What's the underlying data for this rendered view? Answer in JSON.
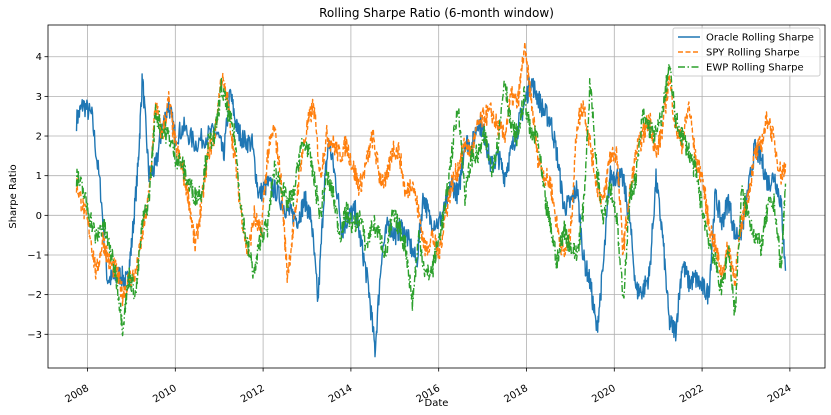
{
  "chart_data": {
    "type": "line",
    "title": "Rolling Sharpe Ratio (6-month window)",
    "xlabel": "Date",
    "ylabel": "Sharpe Ratio",
    "xlim": [
      2007.1,
      2024.8
    ],
    "ylim": [
      -3.85,
      4.8
    ],
    "x_ticks": [
      "2008",
      "2010",
      "2012",
      "2014",
      "2016",
      "2018",
      "2020",
      "2022",
      "2024"
    ],
    "y_ticks": [
      -3,
      -2,
      -1,
      0,
      1,
      2,
      3,
      4
    ],
    "grid": true,
    "legend_position": "top-right",
    "series": [
      {
        "name": "Oracle Rolling Sharpe",
        "color": "#1f77b4",
        "style": "solid",
        "x": [
          2007.75,
          2007.9,
          2008.1,
          2008.3,
          2008.45,
          2008.6,
          2008.75,
          2008.9,
          2009.0,
          2009.15,
          2009.25,
          2009.4,
          2009.55,
          2009.7,
          2009.85,
          2010.0,
          2010.2,
          2010.45,
          2010.7,
          2010.95,
          2011.1,
          2011.25,
          2011.4,
          2011.55,
          2011.75,
          2011.9,
          2012.1,
          2012.3,
          2012.5,
          2012.65,
          2012.8,
          2012.95,
          2013.1,
          2013.25,
          2013.4,
          2013.5,
          2013.65,
          2013.8,
          2013.95,
          2014.1,
          2014.25,
          2014.4,
          2014.55,
          2014.7,
          2014.85,
          2015.0,
          2015.15,
          2015.3,
          2015.5,
          2015.65,
          2015.8,
          2016.0,
          2016.15,
          2016.3,
          2016.45,
          2016.6,
          2016.75,
          2016.9,
          2017.05,
          2017.2,
          2017.35,
          2017.5,
          2017.65,
          2017.8,
          2017.95,
          2018.1,
          2018.25,
          2018.4,
          2018.55,
          2018.7,
          2018.85,
          2019.0,
          2019.15,
          2019.3,
          2019.45,
          2019.6,
          2019.75,
          2019.9,
          2020.05,
          2020.2,
          2020.35,
          2020.5,
          2020.65,
          2020.8,
          2020.95,
          2021.1,
          2021.25,
          2021.4,
          2021.55,
          2021.7,
          2021.85,
          2022.0,
          2022.15,
          2022.3,
          2022.45,
          2022.6,
          2022.75,
          2022.9,
          2023.05,
          2023.2,
          2023.35,
          2023.5,
          2023.65,
          2023.8,
          2023.9
        ],
        "values": [
          2.4,
          2.8,
          2.5,
          0.6,
          -1.6,
          -1.6,
          -1.5,
          -1.7,
          -0.8,
          1.2,
          3.5,
          1.0,
          1.2,
          2.2,
          2.8,
          2.0,
          2.2,
          1.8,
          2.0,
          2.1,
          1.5,
          3.1,
          2.2,
          1.9,
          1.8,
          0.5,
          0.8,
          0.6,
          0.2,
          0.0,
          -0.1,
          0.4,
          -0.1,
          -2.2,
          0.8,
          1.9,
          0.9,
          -0.4,
          0.0,
          0.1,
          -0.8,
          -1.8,
          -3.4,
          -1.0,
          -0.2,
          -0.5,
          -0.3,
          -0.6,
          -1.2,
          0.5,
          -0.1,
          -0.2,
          0.2,
          0.8,
          0.5,
          1.9,
          1.7,
          2.4,
          2.0,
          1.2,
          1.5,
          1.0,
          1.6,
          2.2,
          2.8,
          3.4,
          3.0,
          2.6,
          2.4,
          1.5,
          0.2,
          0.3,
          0.7,
          -1.1,
          -1.7,
          -2.9,
          -1.3,
          1.0,
          1.0,
          0.9,
          -0.1,
          -1.9,
          -1.9,
          -1.5,
          0.9,
          -0.5,
          -2.7,
          -2.9,
          -1.2,
          -1.7,
          -1.6,
          -1.8,
          -2.0,
          0.5,
          -0.2,
          0.4,
          -0.5,
          -0.4,
          0.6,
          1.7,
          1.4,
          0.8,
          1.0,
          0.3,
          -1.4
        ]
      },
      {
        "name": "SPY Rolling Sharpe",
        "color": "#ff7f0e",
        "style": "dashed",
        "x": [
          2007.75,
          2007.9,
          2008.05,
          2008.2,
          2008.35,
          2008.5,
          2008.65,
          2008.8,
          2008.95,
          2009.1,
          2009.25,
          2009.4,
          2009.55,
          2009.7,
          2009.85,
          2010.0,
          2010.15,
          2010.3,
          2010.45,
          2010.6,
          2010.75,
          2010.9,
          2011.05,
          2011.2,
          2011.35,
          2011.5,
          2011.65,
          2011.8,
          2011.95,
          2012.1,
          2012.25,
          2012.4,
          2012.55,
          2012.7,
          2012.85,
          2013.0,
          2013.15,
          2013.3,
          2013.45,
          2013.6,
          2013.75,
          2013.9,
          2014.05,
          2014.2,
          2014.35,
          2014.5,
          2014.65,
          2014.8,
          2014.95,
          2015.1,
          2015.25,
          2015.4,
          2015.55,
          2015.7,
          2015.85,
          2016.0,
          2016.15,
          2016.3,
          2016.45,
          2016.6,
          2016.75,
          2016.9,
          2017.05,
          2017.2,
          2017.35,
          2017.5,
          2017.65,
          2017.8,
          2017.95,
          2018.1,
          2018.25,
          2018.4,
          2018.55,
          2018.7,
          2018.85,
          2019.0,
          2019.15,
          2019.3,
          2019.45,
          2019.6,
          2019.75,
          2019.9,
          2020.05,
          2020.2,
          2020.35,
          2020.5,
          2020.65,
          2020.8,
          2020.95,
          2021.1,
          2021.25,
          2021.4,
          2021.55,
          2021.7,
          2021.85,
          2022.0,
          2022.15,
          2022.3,
          2022.45,
          2022.6,
          2022.75,
          2022.9,
          2023.05,
          2023.2,
          2023.35,
          2023.5,
          2023.65,
          2023.8,
          2023.9
        ],
        "values": [
          0.8,
          0.2,
          -0.4,
          -1.5,
          -0.6,
          -1.2,
          -1.4,
          -2.0,
          -1.6,
          -1.5,
          -0.5,
          0.5,
          2.8,
          2.0,
          2.9,
          1.8,
          1.2,
          0.5,
          -0.8,
          0.3,
          1.6,
          2.0,
          3.5,
          2.8,
          1.5,
          0.1,
          -1.0,
          0.0,
          -0.5,
          1.5,
          2.2,
          1.0,
          -1.5,
          -0.3,
          1.3,
          2.2,
          2.8,
          1.0,
          2.0,
          1.8,
          1.5,
          1.8,
          1.2,
          0.7,
          1.3,
          2.0,
          1.0,
          0.8,
          1.7,
          1.6,
          0.5,
          0.9,
          0.0,
          -0.9,
          -0.5,
          -1.0,
          0.0,
          0.8,
          1.2,
          1.8,
          1.6,
          2.3,
          2.5,
          2.6,
          2.2,
          2.0,
          3.0,
          2.8,
          4.2,
          3.0,
          1.5,
          1.0,
          0.8,
          -0.3,
          -1.0,
          -0.5,
          2.3,
          2.8,
          1.8,
          0.8,
          0.3,
          1.5,
          1.6,
          -0.9,
          0.5,
          1.6,
          2.0,
          2.5,
          1.5,
          2.2,
          3.5,
          2.2,
          1.8,
          2.8,
          1.4,
          1.0,
          -0.2,
          -0.8,
          -1.5,
          -0.8,
          -1.6,
          -0.2,
          0.5,
          1.5,
          1.8,
          2.5,
          1.8,
          1.0,
          1.3
        ]
      },
      {
        "name": "EWP Rolling Sharpe",
        "color": "#2ca02c",
        "style": "dashdot",
        "x": [
          2007.75,
          2007.9,
          2008.05,
          2008.2,
          2008.35,
          2008.5,
          2008.65,
          2008.8,
          2008.95,
          2009.1,
          2009.25,
          2009.4,
          2009.55,
          2009.7,
          2009.85,
          2010.0,
          2010.15,
          2010.3,
          2010.45,
          2010.6,
          2010.75,
          2010.9,
          2011.05,
          2011.2,
          2011.35,
          2011.5,
          2011.65,
          2011.8,
          2011.95,
          2012.1,
          2012.25,
          2012.4,
          2012.55,
          2012.7,
          2012.85,
          2013.0,
          2013.15,
          2013.3,
          2013.45,
          2013.6,
          2013.75,
          2013.9,
          2014.05,
          2014.2,
          2014.35,
          2014.5,
          2014.65,
          2014.8,
          2014.95,
          2015.1,
          2015.25,
          2015.4,
          2015.55,
          2015.7,
          2015.85,
          2016.0,
          2016.15,
          2016.3,
          2016.45,
          2016.6,
          2016.75,
          2016.9,
          2017.05,
          2017.2,
          2017.35,
          2017.5,
          2017.65,
          2017.8,
          2017.95,
          2018.1,
          2018.25,
          2018.4,
          2018.55,
          2018.7,
          2018.85,
          2019.0,
          2019.15,
          2019.3,
          2019.45,
          2019.6,
          2019.75,
          2019.9,
          2020.05,
          2020.2,
          2020.35,
          2020.5,
          2020.65,
          2020.8,
          2020.95,
          2021.1,
          2021.25,
          2021.4,
          2021.55,
          2021.7,
          2021.85,
          2022.0,
          2022.15,
          2022.3,
          2022.45,
          2022.6,
          2022.75,
          2022.9,
          2023.05,
          2023.2,
          2023.35,
          2023.5,
          2023.65,
          2023.8,
          2023.9
        ],
        "values": [
          1.0,
          0.6,
          0.0,
          -0.6,
          -0.2,
          -0.8,
          -1.5,
          -2.8,
          -1.5,
          -2.0,
          -0.2,
          0.4,
          2.6,
          2.2,
          2.0,
          1.5,
          1.3,
          0.8,
          0.5,
          0.6,
          1.8,
          2.0,
          3.2,
          2.6,
          2.0,
          0.2,
          -0.8,
          -1.5,
          -0.5,
          -0.3,
          1.2,
          0.8,
          0.3,
          0.5,
          1.7,
          1.8,
          1.0,
          0.0,
          1.0,
          0.5,
          -0.5,
          0.1,
          -0.3,
          0.0,
          -0.8,
          -0.2,
          -0.5,
          -1.0,
          0.0,
          -0.3,
          -0.8,
          -2.2,
          -0.5,
          -1.5,
          -1.4,
          -0.6,
          0.2,
          1.6,
          2.8,
          0.5,
          1.5,
          1.5,
          2.0,
          1.2,
          1.8,
          3.5,
          2.2,
          2.0,
          3.0,
          2.0,
          2.0,
          0.5,
          -0.3,
          -1.2,
          -0.3,
          -0.8,
          -1.0,
          0.2,
          3.4,
          1.2,
          0.0,
          0.8,
          0.0,
          -2.2,
          0.4,
          1.0,
          2.5,
          2.2,
          2.0,
          2.6,
          3.8,
          2.4,
          2.0,
          1.6,
          1.1,
          0.2,
          -0.6,
          -1.2,
          -1.9,
          -0.8,
          -2.5,
          0.6,
          0.0,
          -0.5,
          -0.8,
          0.2,
          0.3,
          -1.4,
          0.8
        ]
      }
    ]
  }
}
